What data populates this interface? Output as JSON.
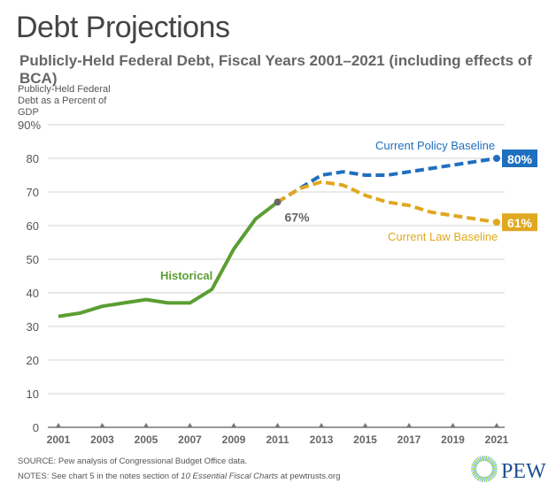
{
  "title": "Debt Projections",
  "subtitle": "Publicly-Held Federal Debt, Fiscal Years 2001–2021 (including effects of BCA)",
  "source": "SOURCE: Pew analysis of Congressional Budget Office data.",
  "notes_prefix": "NOTES: See chart 5 in the notes section of ",
  "notes_italic": "10 Essential Fiscal Charts",
  "notes_suffix": " at pewtrusts.org",
  "logo_text": "PEW",
  "chart_data": {
    "type": "line",
    "ylabel": "Publicly-Held Federal Debt as a Percent of GDP",
    "ylim": [
      0,
      90
    ],
    "yticks": [
      0,
      10,
      20,
      30,
      40,
      50,
      60,
      70,
      80,
      90
    ],
    "ytick_labels": [
      "0",
      "10",
      "20",
      "30",
      "40",
      "50",
      "60",
      "70",
      "80",
      "90%"
    ],
    "xlim": [
      2001,
      2021
    ],
    "xticks": [
      2001,
      2003,
      2005,
      2007,
      2009,
      2011,
      2013,
      2015,
      2017,
      2019,
      2021
    ],
    "xtick_labels": [
      "2001",
      "2003",
      "2005",
      "2007",
      "2009",
      "2011",
      "2013",
      "2015",
      "2017",
      "2019",
      "2021"
    ],
    "grid": true,
    "series": [
      {
        "name": "Historical",
        "color": "#5b9e32",
        "dashed": false,
        "x": [
          2001,
          2002,
          2003,
          2004,
          2005,
          2006,
          2007,
          2008,
          2009,
          2010,
          2011
        ],
        "y": [
          33,
          34,
          36,
          37,
          38,
          37,
          37,
          41,
          53,
          62,
          67
        ]
      },
      {
        "name": "Current Policy Baseline",
        "color": "#1f6fbf",
        "dashed": true,
        "x": [
          2011,
          2012,
          2013,
          2014,
          2015,
          2016,
          2017,
          2018,
          2019,
          2020,
          2021
        ],
        "y": [
          67,
          71,
          75,
          76,
          75,
          75,
          76,
          77,
          78,
          79,
          80
        ]
      },
      {
        "name": "Current Law Baseline",
        "color": "#e0a820",
        "dashed": true,
        "x": [
          2011,
          2012,
          2013,
          2014,
          2015,
          2016,
          2017,
          2018,
          2019,
          2020,
          2021
        ],
        "y": [
          67,
          71,
          73,
          72,
          69,
          67,
          66,
          64,
          63,
          62,
          61
        ]
      }
    ],
    "annotations": {
      "split_point": "67%",
      "policy_end": "80%",
      "law_end": "61%"
    }
  }
}
